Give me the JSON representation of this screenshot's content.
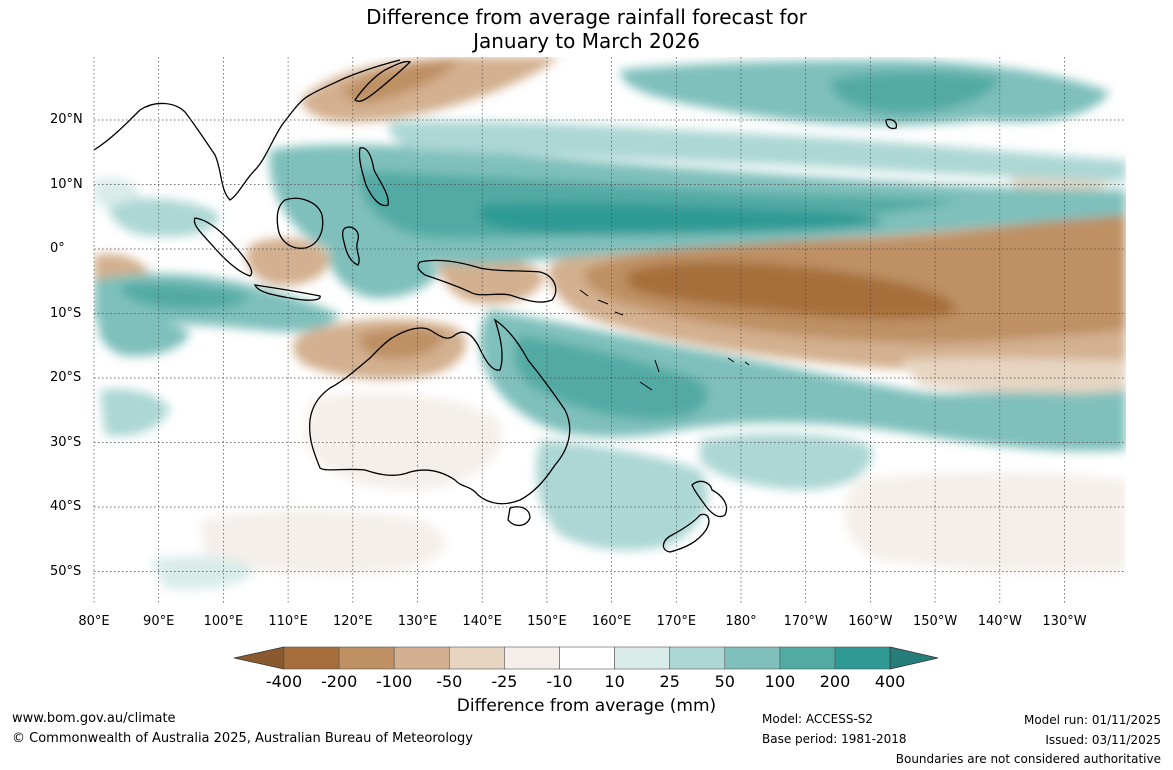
{
  "title": {
    "line1": "Difference from average rainfall forecast for",
    "line2": "January to March 2026"
  },
  "map": {
    "lat_labels": [
      "20°N",
      "10°N",
      "0°",
      "10°S",
      "20°S",
      "30°S",
      "40°S",
      "50°S"
    ],
    "lon_labels": [
      "80°E",
      "90°E",
      "100°E",
      "110°E",
      "120°E",
      "130°E",
      "140°E",
      "150°E",
      "160°E",
      "170°E",
      "180°",
      "170°W",
      "160°W",
      "150°W",
      "140°W",
      "130°W"
    ]
  },
  "colorbar": {
    "title": "Difference from average (mm)",
    "labels": [
      "-400",
      "-200",
      "-100",
      "-50",
      "-25",
      "-10",
      "10",
      "25",
      "50",
      "100",
      "200",
      "400"
    ],
    "colors": [
      "#a66e3b",
      "#be9063",
      "#d3b08f",
      "#e7d5c2",
      "#f4efea",
      "#ffffff",
      "#d9ecea",
      "#acd7d4",
      "#7fc0bc",
      "#52aaa5",
      "#2f9a94",
      "#257e7a",
      "#8a5a2e"
    ]
  },
  "footer": {
    "url": "www.bom.gov.au/climate",
    "copyright": "© Commonwealth of Australia 2025, Australian Bureau of Meteorology",
    "model": "Model: ACCESS-S2",
    "base_period": "Base period: 1981-2018",
    "model_run": "Model run: 01/11/2025",
    "issued": "Issued: 03/11/2025",
    "disclaimer": "Boundaries are not considered authoritative"
  }
}
